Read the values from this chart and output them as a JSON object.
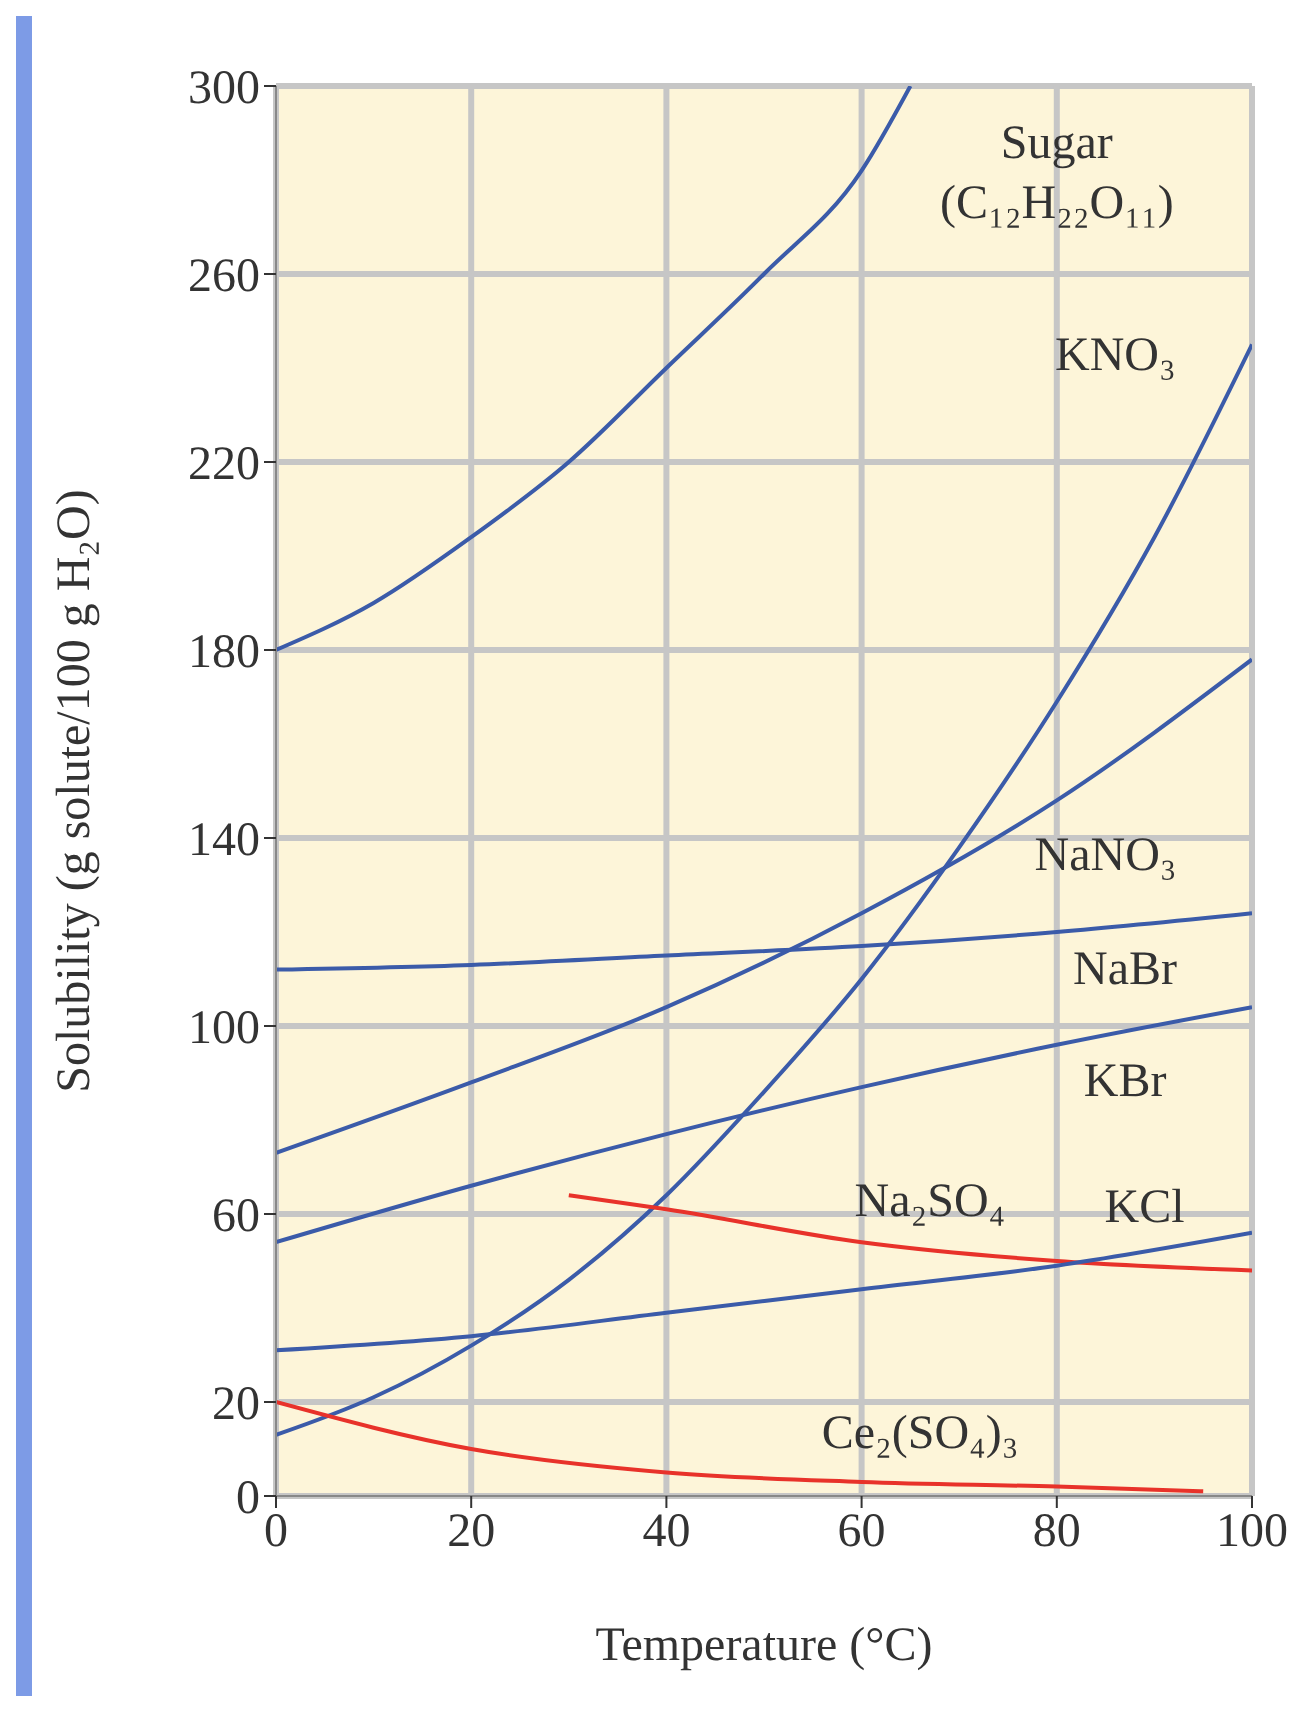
{
  "chart_data": {
    "type": "line",
    "xlabel": "Temperature (°C)",
    "ylabel": "Solubility (g solute/100 g H₂O)",
    "xlim": [
      0,
      100
    ],
    "xticks": [
      0,
      20,
      40,
      60,
      80,
      100
    ],
    "ylim": [
      0,
      300
    ],
    "yticks": [
      0,
      20,
      60,
      100,
      140,
      180,
      220,
      260,
      300
    ],
    "grid": true,
    "marker": "none",
    "line_style": "solid",
    "series": [
      {
        "name": "Sugar (C₁₂H₂₂O₁₁)",
        "color": "#3b5ba9",
        "x": [
          0,
          10,
          20,
          30,
          40,
          50,
          60,
          65
        ],
        "values": [
          180,
          190,
          204,
          220,
          240,
          260,
          282,
          300
        ]
      },
      {
        "name": "KNO₃",
        "color": "#3b5ba9",
        "x": [
          0,
          10,
          20,
          30,
          40,
          50,
          60,
          70,
          80,
          90,
          100
        ],
        "values": [
          13,
          21,
          32,
          46,
          64,
          86,
          110,
          138,
          169,
          204,
          245
        ]
      },
      {
        "name": "NaNO₃",
        "color": "#3b5ba9",
        "x": [
          0,
          20,
          40,
          60,
          80,
          100
        ],
        "values": [
          73,
          88,
          104,
          124,
          148,
          178
        ]
      },
      {
        "name": "NaBr",
        "color": "#3b5ba9",
        "x": [
          0,
          20,
          40,
          60,
          80,
          100
        ],
        "values": [
          112,
          113,
          115,
          117,
          120,
          124
        ]
      },
      {
        "name": "KBr",
        "color": "#3b5ba9",
        "x": [
          0,
          20,
          40,
          60,
          80,
          100
        ],
        "values": [
          54,
          66,
          77,
          87,
          96,
          104
        ]
      },
      {
        "name": "Na₂SO₄",
        "color": "#e8322a",
        "x": [
          30,
          40,
          60,
          80,
          100
        ],
        "values": [
          64,
          61,
          54,
          50,
          48
        ]
      },
      {
        "name": "KCl",
        "color": "#3b5ba9",
        "x": [
          0,
          20,
          40,
          60,
          80,
          100
        ],
        "values": [
          31,
          34,
          39,
          44,
          49,
          56
        ]
      },
      {
        "name": "Ce₂(SO₄)₃",
        "color": "#e8322a",
        "x": [
          0,
          20,
          40,
          60,
          80,
          95
        ],
        "values": [
          20,
          10,
          5,
          3,
          2,
          1
        ]
      }
    ]
  }
}
